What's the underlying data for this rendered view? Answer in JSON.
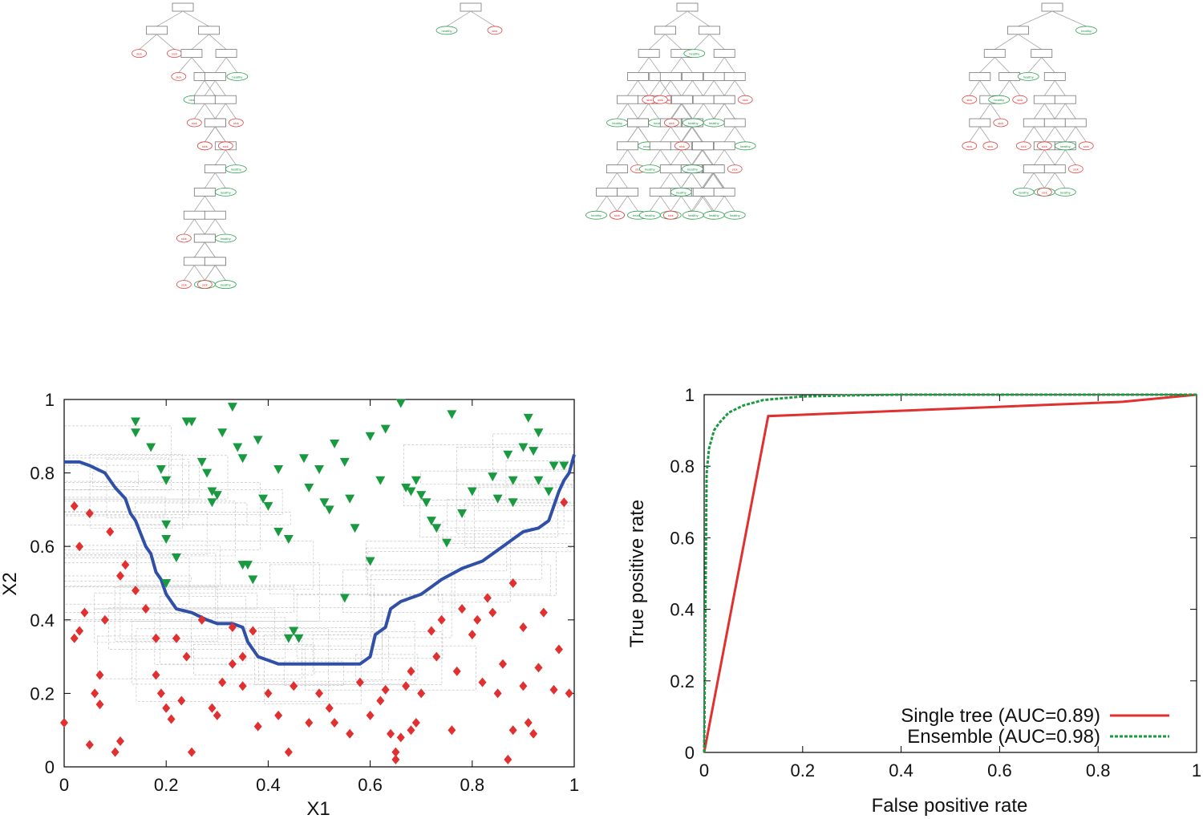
{
  "colors": {
    "sick": "#e03030",
    "healthy": "#1a9a40",
    "boundary": "#3050a8",
    "single_tree": "#e03030",
    "ensemble": "#1a9a40"
  },
  "trees": {
    "tree_count": 4,
    "leaf_labels": {
      "sick": "sick",
      "healthy": "healthy"
    }
  },
  "chart_data": [
    {
      "type": "scatter",
      "title": "",
      "xlabel": "X1",
      "ylabel": "X2",
      "xlim": [
        0,
        1
      ],
      "ylim": [
        0,
        1
      ],
      "xticks": [
        "0",
        "0.2",
        "0.4",
        "0.6",
        "0.8",
        "1"
      ],
      "yticks": [
        "0",
        "0.2",
        "0.4",
        "0.6",
        "0.8",
        "1"
      ],
      "grid": false,
      "series": [
        {
          "marker": "diamond",
          "color": "#e03030",
          "points": [
            [
              0.0,
              0.12
            ],
            [
              0.02,
              0.35
            ],
            [
              0.03,
              0.37
            ],
            [
              0.04,
              0.42
            ],
            [
              0.05,
              0.06
            ],
            [
              0.06,
              0.2
            ],
            [
              0.07,
              0.17
            ],
            [
              0.07,
              0.25
            ],
            [
              0.08,
              0.4
            ],
            [
              0.1,
              0.04
            ],
            [
              0.11,
              0.07
            ],
            [
              0.03,
              0.6
            ],
            [
              0.02,
              0.71
            ],
            [
              0.05,
              0.69
            ],
            [
              0.09,
              0.64
            ],
            [
              0.11,
              0.52
            ],
            [
              0.12,
              0.55
            ],
            [
              0.14,
              0.48
            ],
            [
              0.16,
              0.43
            ],
            [
              0.18,
              0.25
            ],
            [
              0.18,
              0.35
            ],
            [
              0.19,
              0.2
            ],
            [
              0.2,
              0.16
            ],
            [
              0.21,
              0.13
            ],
            [
              0.22,
              0.35
            ],
            [
              0.23,
              0.18
            ],
            [
              0.24,
              0.3
            ],
            [
              0.25,
              0.04
            ],
            [
              0.27,
              0.4
            ],
            [
              0.29,
              0.16
            ],
            [
              0.3,
              0.14
            ],
            [
              0.31,
              0.23
            ],
            [
              0.33,
              0.38
            ],
            [
              0.33,
              0.28
            ],
            [
              0.35,
              0.3
            ],
            [
              0.35,
              0.22
            ],
            [
              0.37,
              0.37
            ],
            [
              0.38,
              0.11
            ],
            [
              0.4,
              0.2
            ],
            [
              0.42,
              0.14
            ],
            [
              0.44,
              0.04
            ],
            [
              0.45,
              0.22
            ],
            [
              0.48,
              0.12
            ],
            [
              0.5,
              0.2
            ],
            [
              0.52,
              0.16
            ],
            [
              0.53,
              0.12
            ],
            [
              0.56,
              0.09
            ],
            [
              0.58,
              0.23
            ],
            [
              0.6,
              0.14
            ],
            [
              0.62,
              0.18
            ],
            [
              0.63,
              0.21
            ],
            [
              0.64,
              0.09
            ],
            [
              0.65,
              0.02
            ],
            [
              0.65,
              0.04
            ],
            [
              0.66,
              0.08
            ],
            [
              0.67,
              0.22
            ],
            [
              0.68,
              0.26
            ],
            [
              0.68,
              0.1
            ],
            [
              0.69,
              0.12
            ],
            [
              0.7,
              0.2
            ],
            [
              0.72,
              0.37
            ],
            [
              0.73,
              0.3
            ],
            [
              0.74,
              0.4
            ],
            [
              0.76,
              0.1
            ],
            [
              0.77,
              0.26
            ],
            [
              0.78,
              0.43
            ],
            [
              0.8,
              0.36
            ],
            [
              0.81,
              0.4
            ],
            [
              0.82,
              0.23
            ],
            [
              0.83,
              0.46
            ],
            [
              0.84,
              0.42
            ],
            [
              0.85,
              0.2
            ],
            [
              0.86,
              0.28
            ],
            [
              0.87,
              0.02
            ],
            [
              0.88,
              0.1
            ],
            [
              0.88,
              0.5
            ],
            [
              0.9,
              0.38
            ],
            [
              0.9,
              0.22
            ],
            [
              0.91,
              0.12
            ],
            [
              0.92,
              0.09
            ],
            [
              0.93,
              0.27
            ],
            [
              0.94,
              0.42
            ],
            [
              0.96,
              0.21
            ],
            [
              0.97,
              0.32
            ],
            [
              0.99,
              0.2
            ],
            [
              0.98,
              0.72
            ]
          ]
        },
        {
          "marker": "triangle-down",
          "color": "#1a9a40",
          "points": [
            [
              0.14,
              0.94
            ],
            [
              0.14,
              0.91
            ],
            [
              0.17,
              0.87
            ],
            [
              0.19,
              0.81
            ],
            [
              0.2,
              0.78
            ],
            [
              0.2,
              0.66
            ],
            [
              0.2,
              0.62
            ],
            [
              0.2,
              0.5
            ],
            [
              0.22,
              0.57
            ],
            [
              0.24,
              0.94
            ],
            [
              0.25,
              0.94
            ],
            [
              0.27,
              0.83
            ],
            [
              0.28,
              0.8
            ],
            [
              0.29,
              0.75
            ],
            [
              0.29,
              0.72
            ],
            [
              0.3,
              0.74
            ],
            [
              0.31,
              0.91
            ],
            [
              0.33,
              0.98
            ],
            [
              0.34,
              0.87
            ],
            [
              0.35,
              0.84
            ],
            [
              0.35,
              0.55
            ],
            [
              0.36,
              0.55
            ],
            [
              0.37,
              0.51
            ],
            [
              0.38,
              0.89
            ],
            [
              0.39,
              0.73
            ],
            [
              0.4,
              0.71
            ],
            [
              0.42,
              0.81
            ],
            [
              0.42,
              0.64
            ],
            [
              0.44,
              0.62
            ],
            [
              0.44,
              0.35
            ],
            [
              0.45,
              0.37
            ],
            [
              0.46,
              0.35
            ],
            [
              0.47,
              0.84
            ],
            [
              0.48,
              0.76
            ],
            [
              0.5,
              0.81
            ],
            [
              0.51,
              0.72
            ],
            [
              0.52,
              0.7
            ],
            [
              0.53,
              0.88
            ],
            [
              0.55,
              0.83
            ],
            [
              0.55,
              0.46
            ],
            [
              0.56,
              0.73
            ],
            [
              0.57,
              0.65
            ],
            [
              0.6,
              0.56
            ],
            [
              0.6,
              0.9
            ],
            [
              0.62,
              0.78
            ],
            [
              0.63,
              0.92
            ],
            [
              0.66,
              0.99
            ],
            [
              0.67,
              0.76
            ],
            [
              0.68,
              0.75
            ],
            [
              0.69,
              0.78
            ],
            [
              0.7,
              0.74
            ],
            [
              0.71,
              0.72
            ],
            [
              0.72,
              0.67
            ],
            [
              0.73,
              0.65
            ],
            [
              0.75,
              0.61
            ],
            [
              0.76,
              0.96
            ],
            [
              0.78,
              0.69
            ],
            [
              0.8,
              0.75
            ],
            [
              0.84,
              0.79
            ],
            [
              0.85,
              0.73
            ],
            [
              0.87,
              0.85
            ],
            [
              0.88,
              0.78
            ],
            [
              0.88,
              0.72
            ],
            [
              0.9,
              0.87
            ],
            [
              0.91,
              0.95
            ],
            [
              0.92,
              0.86
            ],
            [
              0.93,
              0.91
            ],
            [
              0.93,
              0.78
            ],
            [
              0.95,
              0.75
            ],
            [
              0.96,
              0.82
            ],
            [
              0.98,
              0.82
            ]
          ]
        }
      ],
      "boundary_line": [
        [
          0.0,
          0.83
        ],
        [
          0.03,
          0.83
        ],
        [
          0.05,
          0.82
        ],
        [
          0.08,
          0.8
        ],
        [
          0.1,
          0.76
        ],
        [
          0.12,
          0.73
        ],
        [
          0.13,
          0.69
        ],
        [
          0.14,
          0.67
        ],
        [
          0.16,
          0.6
        ],
        [
          0.17,
          0.58
        ],
        [
          0.18,
          0.53
        ],
        [
          0.19,
          0.51
        ],
        [
          0.2,
          0.47
        ],
        [
          0.22,
          0.43
        ],
        [
          0.25,
          0.42
        ],
        [
          0.28,
          0.4
        ],
        [
          0.3,
          0.39
        ],
        [
          0.33,
          0.39
        ],
        [
          0.35,
          0.38
        ],
        [
          0.36,
          0.34
        ],
        [
          0.38,
          0.3
        ],
        [
          0.4,
          0.29
        ],
        [
          0.42,
          0.28
        ],
        [
          0.45,
          0.28
        ],
        [
          0.5,
          0.28
        ],
        [
          0.54,
          0.28
        ],
        [
          0.58,
          0.28
        ],
        [
          0.6,
          0.3
        ],
        [
          0.61,
          0.36
        ],
        [
          0.63,
          0.38
        ],
        [
          0.64,
          0.43
        ],
        [
          0.66,
          0.45
        ],
        [
          0.7,
          0.47
        ],
        [
          0.72,
          0.49
        ],
        [
          0.74,
          0.51
        ],
        [
          0.78,
          0.54
        ],
        [
          0.82,
          0.56
        ],
        [
          0.84,
          0.58
        ],
        [
          0.86,
          0.6
        ],
        [
          0.88,
          0.62
        ],
        [
          0.9,
          0.64
        ],
        [
          0.93,
          0.65
        ],
        [
          0.95,
          0.67
        ],
        [
          0.96,
          0.71
        ],
        [
          0.97,
          0.75
        ],
        [
          0.98,
          0.78
        ],
        [
          0.99,
          0.8
        ],
        [
          1.0,
          0.85
        ]
      ]
    },
    {
      "type": "line",
      "title": "",
      "xlabel": "False positive rate",
      "ylabel": "True positive rate",
      "xlim": [
        0,
        1
      ],
      "ylim": [
        0,
        1
      ],
      "xticks": [
        "0",
        "0.2",
        "0.4",
        "0.6",
        "0.8",
        "1"
      ],
      "yticks": [
        "0",
        "0.2",
        "0.4",
        "0.6",
        "0.8",
        "1"
      ],
      "grid": false,
      "legend_position": "bottom-right",
      "series": [
        {
          "name": "Single tree (AUC=0.89)",
          "color": "#e03030",
          "style": "solid",
          "x": [
            0,
            0.13,
            0.85,
            1
          ],
          "y": [
            0,
            0.94,
            0.98,
            1
          ]
        },
        {
          "name": "Ensemble (AUC=0.98)",
          "color": "#1a9a40",
          "style": "dashed",
          "x": [
            0,
            0.005,
            0.01,
            0.02,
            0.03,
            0.05,
            0.08,
            0.12,
            0.2,
            0.3,
            0.4,
            0.6,
            0.8,
            1
          ],
          "y": [
            0,
            0.78,
            0.85,
            0.9,
            0.92,
            0.95,
            0.97,
            0.985,
            0.995,
            0.998,
            1,
            1,
            1,
            1
          ]
        }
      ]
    }
  ]
}
